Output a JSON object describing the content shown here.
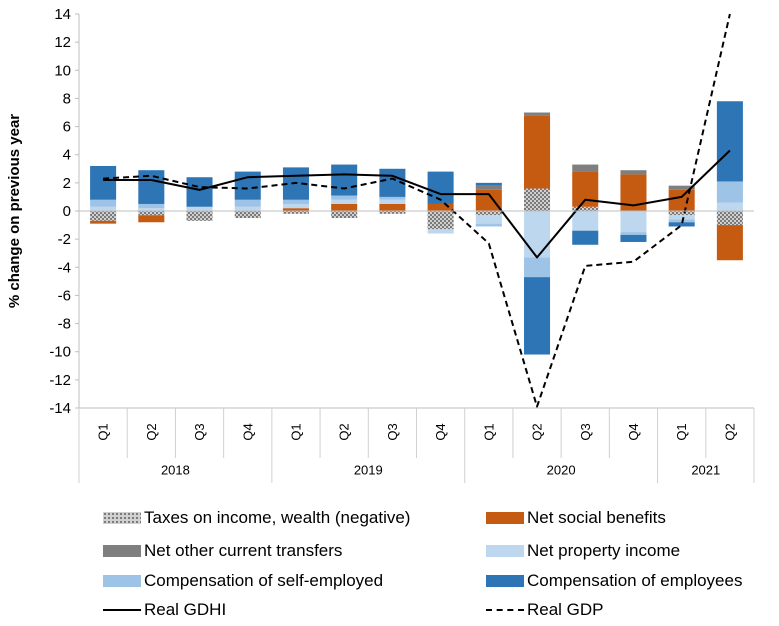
{
  "chart_data": {
    "type": "bar",
    "stacked": true,
    "ylabel": "% change on previous year",
    "ylim": [
      -14,
      14
    ],
    "yticks": [
      -14,
      -12,
      -10,
      -8,
      -6,
      -4,
      -2,
      0,
      2,
      4,
      6,
      8,
      10,
      12,
      14
    ],
    "grid": false,
    "legend_position": "bottom",
    "categories": [
      "Q1",
      "Q2",
      "Q3",
      "Q4",
      "Q1",
      "Q2",
      "Q3",
      "Q4",
      "Q1",
      "Q2",
      "Q3",
      "Q4",
      "Q1",
      "Q2"
    ],
    "years": [
      {
        "label": "2018",
        "quarters": 4
      },
      {
        "label": "2019",
        "quarters": 4
      },
      {
        "label": "2020",
        "quarters": 4
      },
      {
        "label": "2021",
        "quarters": 2
      }
    ],
    "bar_series": [
      {
        "name": "Taxes on income, wealth (negative)",
        "color": "#a5a5a5",
        "pattern": "dots",
        "values": [
          -0.7,
          -0.3,
          -0.7,
          -0.5,
          -0.2,
          -0.5,
          -0.2,
          -1.3,
          -0.3,
          1.6,
          0.3,
          0.0,
          -0.3,
          -1.0
        ]
      },
      {
        "name": "Net social benefits",
        "color": "#c55a11",
        "values": [
          -0.2,
          -0.5,
          0.0,
          0.0,
          0.2,
          0.5,
          0.5,
          0.5,
          1.5,
          5.2,
          2.5,
          2.6,
          1.5,
          -2.5
        ]
      },
      {
        "name": "Net other current transfers",
        "color": "#7f7f7f",
        "values": [
          0.0,
          0.0,
          0.0,
          0.0,
          0.0,
          0.0,
          0.0,
          0.0,
          0.3,
          0.2,
          0.5,
          0.3,
          0.3,
          0.0
        ]
      },
      {
        "name": "Net property income",
        "color": "#bdd7ee",
        "values": [
          0.3,
          0.2,
          0.3,
          0.3,
          0.3,
          0.3,
          0.3,
          -0.3,
          -0.6,
          -3.3,
          -1.4,
          -1.5,
          -0.3,
          0.6
        ]
      },
      {
        "name": "Compensation of self-employed",
        "color": "#9dc3e6",
        "values": [
          0.5,
          0.3,
          0.0,
          0.5,
          0.3,
          0.3,
          0.2,
          0.0,
          -0.2,
          -1.4,
          0.0,
          -0.2,
          -0.2,
          1.5
        ]
      },
      {
        "name": "Compensation of employees",
        "color": "#2e75b6",
        "values": [
          2.4,
          2.4,
          2.1,
          2.0,
          2.3,
          2.2,
          2.0,
          2.3,
          0.2,
          -5.5,
          -1.0,
          -0.5,
          -0.3,
          5.7
        ]
      }
    ],
    "line_series": [
      {
        "name": "Real GDHI",
        "style": "solid",
        "color": "#000000",
        "values": [
          2.2,
          2.2,
          1.5,
          2.4,
          2.5,
          2.6,
          2.5,
          1.2,
          1.2,
          -3.3,
          0.8,
          0.4,
          1.0,
          4.3
        ]
      },
      {
        "name": "Real GDP",
        "style": "dashed",
        "color": "#000000",
        "values": [
          2.3,
          2.5,
          1.7,
          1.6,
          2.0,
          1.6,
          2.3,
          0.8,
          -2.3,
          -13.9,
          -3.9,
          -3.6,
          -1.0,
          14.0
        ]
      }
    ]
  },
  "legend": [
    {
      "label": "Taxes on income, wealth (negative)",
      "swatch": "dots",
      "color": "#a5a5a5"
    },
    {
      "label": "Net social benefits",
      "swatch": "box",
      "color": "#c55a11"
    },
    {
      "label": "Net other current transfers",
      "swatch": "box",
      "color": "#7f7f7f"
    },
    {
      "label": "Net property income",
      "swatch": "box",
      "color": "#bdd7ee"
    },
    {
      "label": "Compensation of self-employed",
      "swatch": "box",
      "color": "#9dc3e6"
    },
    {
      "label": "Compensation of employees",
      "swatch": "box",
      "color": "#2e75b6"
    },
    {
      "label": "Real GDHI",
      "swatch": "line",
      "color": "#000000"
    },
    {
      "label": "Real GDP",
      "swatch": "dash",
      "color": "#000000"
    }
  ]
}
